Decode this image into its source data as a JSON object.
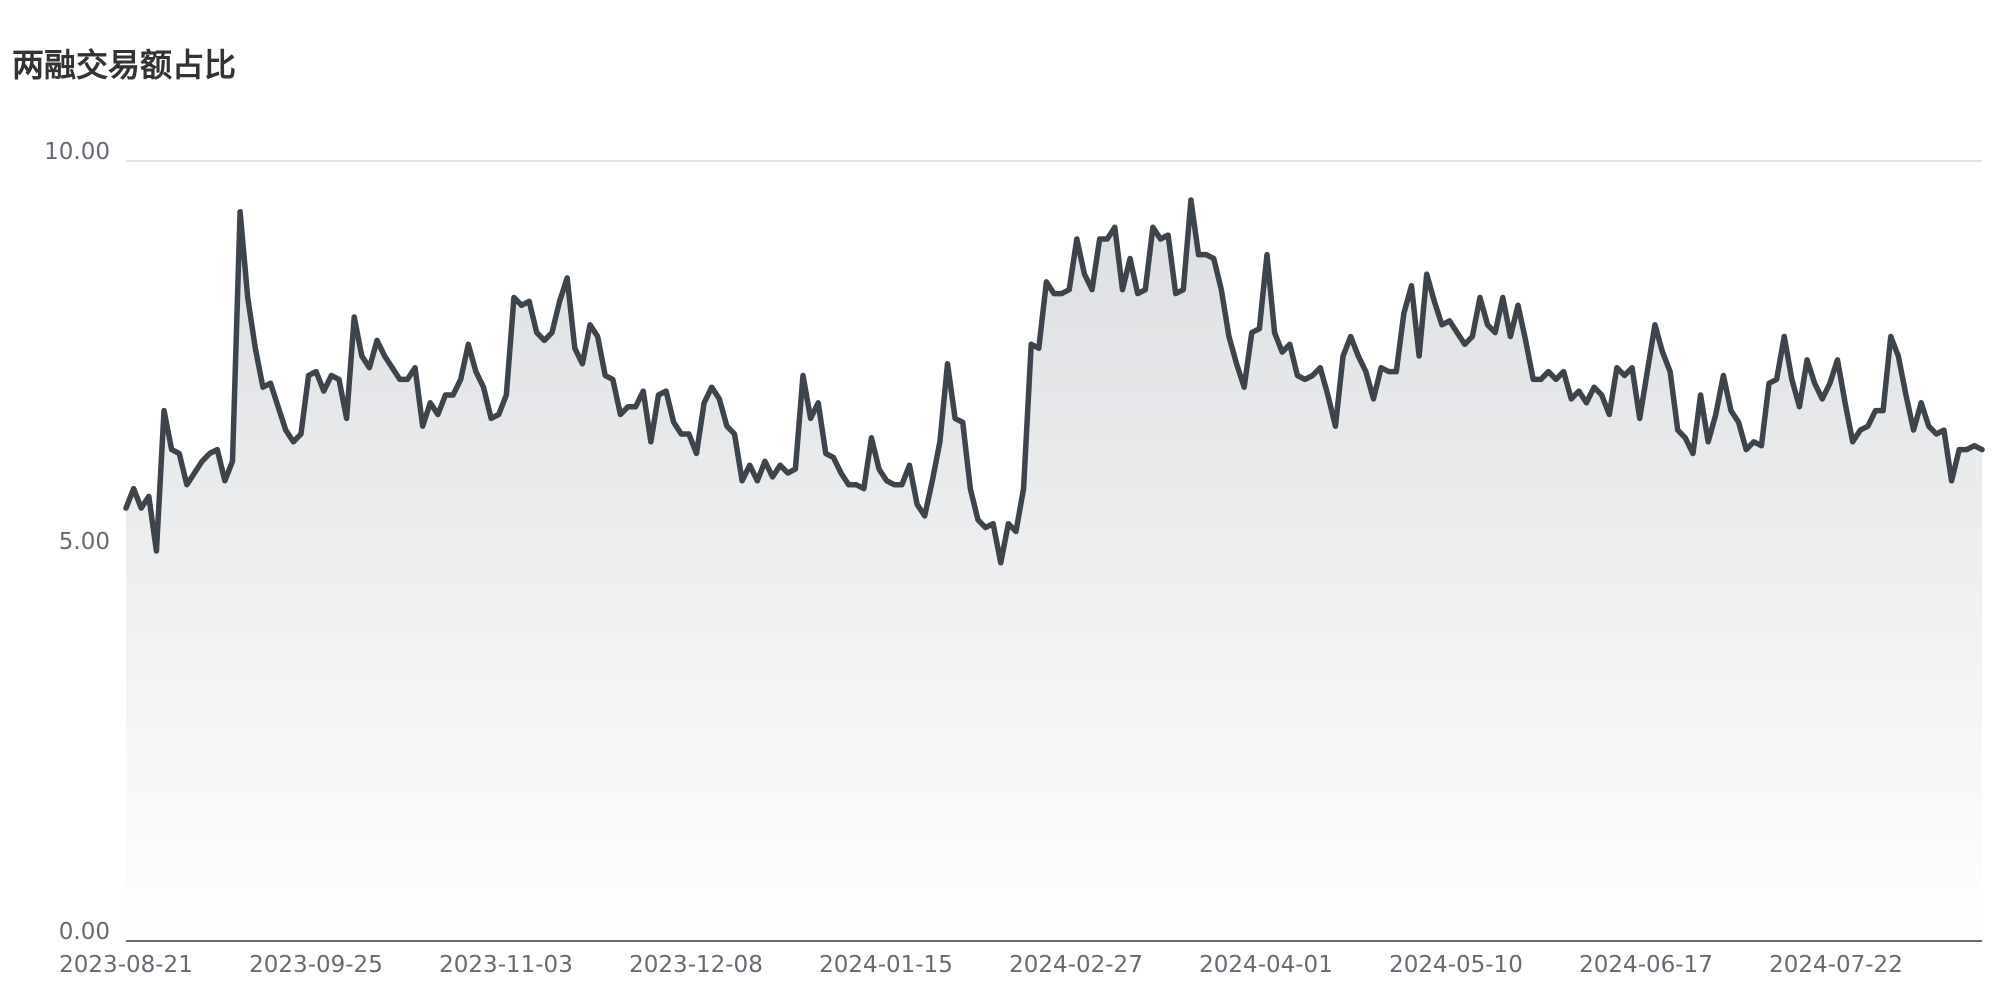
{
  "chart_data": {
    "type": "area",
    "title": "两融交易额占比",
    "ylim": [
      0,
      10
    ],
    "y_ticks": [
      "0.00",
      "5.00",
      "10.00"
    ],
    "x_tick_labels": [
      "2023-08-21",
      "2023-09-25",
      "2023-11-03",
      "2023-12-08",
      "2024-01-15",
      "2024-02-27",
      "2024-04-01",
      "2024-05-10",
      "2024-06-17",
      "2024-07-22"
    ],
    "grid": "horizontal",
    "colors": {
      "line": "#3d444c",
      "area_top": "#dcdee1",
      "area_bottom": "#ffffff",
      "grid": "#d9d9d9",
      "axis": "#666a72"
    },
    "points": [
      [
        0,
        5.55
      ],
      [
        1,
        5.8
      ],
      [
        2,
        5.55
      ],
      [
        3,
        5.7
      ],
      [
        4,
        5.0
      ],
      [
        5,
        6.8
      ],
      [
        6,
        6.3
      ],
      [
        7,
        6.25
      ],
      [
        8,
        5.85
      ],
      [
        9,
        6.0
      ],
      [
        10,
        6.15
      ],
      [
        11,
        6.25
      ],
      [
        12,
        6.3
      ],
      [
        13,
        5.9
      ],
      [
        14,
        6.15
      ],
      [
        15,
        9.35
      ],
      [
        16,
        8.25
      ],
      [
        17,
        7.6
      ],
      [
        18,
        7.1
      ],
      [
        19,
        7.15
      ],
      [
        20,
        6.85
      ],
      [
        21,
        6.55
      ],
      [
        22,
        6.4
      ],
      [
        23,
        6.5
      ],
      [
        24,
        7.25
      ],
      [
        25,
        7.3
      ],
      [
        26,
        7.05
      ],
      [
        27,
        7.25
      ],
      [
        28,
        7.2
      ],
      [
        29,
        6.7
      ],
      [
        30,
        8.0
      ],
      [
        31,
        7.5
      ],
      [
        32,
        7.35
      ],
      [
        33,
        7.7
      ],
      [
        34,
        7.5
      ],
      [
        35,
        7.35
      ],
      [
        36,
        7.2
      ],
      [
        37,
        7.2
      ],
      [
        38,
        7.35
      ],
      [
        39,
        6.6
      ],
      [
        40,
        6.9
      ],
      [
        41,
        6.75
      ],
      [
        42,
        7.0
      ],
      [
        43,
        7.0
      ],
      [
        44,
        7.2
      ],
      [
        45,
        7.65
      ],
      [
        46,
        7.3
      ],
      [
        47,
        7.1
      ],
      [
        48,
        6.7
      ],
      [
        49,
        6.75
      ],
      [
        50,
        7.0
      ],
      [
        51,
        8.25
      ],
      [
        52,
        8.15
      ],
      [
        53,
        8.2
      ],
      [
        54,
        7.8
      ],
      [
        55,
        7.7
      ],
      [
        56,
        7.8
      ],
      [
        57,
        8.2
      ],
      [
        58,
        8.5
      ],
      [
        59,
        7.6
      ],
      [
        60,
        7.4
      ],
      [
        61,
        7.9
      ],
      [
        62,
        7.75
      ],
      [
        63,
        7.25
      ],
      [
        64,
        7.2
      ],
      [
        65,
        6.75
      ],
      [
        66,
        6.85
      ],
      [
        67,
        6.85
      ],
      [
        68,
        7.05
      ],
      [
        69,
        6.4
      ],
      [
        70,
        7.0
      ],
      [
        71,
        7.05
      ],
      [
        72,
        6.65
      ],
      [
        73,
        6.5
      ],
      [
        74,
        6.5
      ],
      [
        75,
        6.25
      ],
      [
        76,
        6.9
      ],
      [
        77,
        7.1
      ],
      [
        78,
        6.95
      ],
      [
        79,
        6.6
      ],
      [
        80,
        6.5
      ],
      [
        81,
        5.9
      ],
      [
        82,
        6.1
      ],
      [
        83,
        5.9
      ],
      [
        84,
        6.15
      ],
      [
        85,
        5.95
      ],
      [
        86,
        6.1
      ],
      [
        87,
        6.0
      ],
      [
        88,
        6.05
      ],
      [
        89,
        7.25
      ],
      [
        90,
        6.7
      ],
      [
        91,
        6.9
      ],
      [
        92,
        6.25
      ],
      [
        93,
        6.2
      ],
      [
        94,
        6.0
      ],
      [
        95,
        5.85
      ],
      [
        96,
        5.85
      ],
      [
        97,
        5.8
      ],
      [
        98,
        6.45
      ],
      [
        99,
        6.05
      ],
      [
        100,
        5.9
      ],
      [
        101,
        5.85
      ],
      [
        102,
        5.85
      ],
      [
        103,
        6.1
      ],
      [
        104,
        5.6
      ],
      [
        105,
        5.45
      ],
      [
        106,
        5.9
      ],
      [
        107,
        6.4
      ],
      [
        108,
        7.4
      ],
      [
        109,
        6.7
      ],
      [
        110,
        6.65
      ],
      [
        111,
        5.8
      ],
      [
        112,
        5.4
      ],
      [
        113,
        5.3
      ],
      [
        114,
        5.35
      ],
      [
        115,
        4.85
      ],
      [
        116,
        5.35
      ],
      [
        117,
        5.25
      ],
      [
        118,
        5.8
      ],
      [
        119,
        7.65
      ],
      [
        120,
        7.6
      ],
      [
        121,
        8.45
      ],
      [
        122,
        8.3
      ],
      [
        123,
        8.3
      ],
      [
        124,
        8.35
      ],
      [
        125,
        9.0
      ],
      [
        126,
        8.55
      ],
      [
        127,
        8.35
      ],
      [
        128,
        9.0
      ],
      [
        129,
        9.0
      ],
      [
        130,
        9.15
      ],
      [
        131,
        8.35
      ],
      [
        132,
        8.75
      ],
      [
        133,
        8.3
      ],
      [
        134,
        8.35
      ],
      [
        135,
        9.15
      ],
      [
        136,
        9.0
      ],
      [
        137,
        9.05
      ],
      [
        138,
        8.3
      ],
      [
        139,
        8.35
      ],
      [
        140,
        9.5
      ],
      [
        141,
        8.8
      ],
      [
        142,
        8.8
      ],
      [
        143,
        8.75
      ],
      [
        144,
        8.35
      ],
      [
        145,
        7.75
      ],
      [
        146,
        7.4
      ],
      [
        147,
        7.1
      ],
      [
        148,
        7.8
      ],
      [
        149,
        7.85
      ],
      [
        150,
        8.8
      ],
      [
        151,
        7.8
      ],
      [
        152,
        7.55
      ],
      [
        153,
        7.65
      ],
      [
        154,
        7.25
      ],
      [
        155,
        7.2
      ],
      [
        156,
        7.25
      ],
      [
        157,
        7.35
      ],
      [
        158,
        7.0
      ],
      [
        159,
        6.6
      ],
      [
        160,
        7.5
      ],
      [
        161,
        7.75
      ],
      [
        162,
        7.5
      ],
      [
        163,
        7.3
      ],
      [
        164,
        6.95
      ],
      [
        165,
        7.35
      ],
      [
        166,
        7.3
      ],
      [
        167,
        7.3
      ],
      [
        168,
        8.05
      ],
      [
        169,
        8.4
      ],
      [
        170,
        7.5
      ],
      [
        171,
        8.55
      ],
      [
        172,
        8.2
      ],
      [
        173,
        7.9
      ],
      [
        174,
        7.95
      ],
      [
        175,
        7.8
      ],
      [
        176,
        7.65
      ],
      [
        177,
        7.75
      ],
      [
        178,
        8.25
      ],
      [
        179,
        7.9
      ],
      [
        180,
        7.8
      ],
      [
        181,
        8.25
      ],
      [
        182,
        7.75
      ],
      [
        183,
        8.15
      ],
      [
        184,
        7.7
      ],
      [
        185,
        7.2
      ],
      [
        186,
        7.2
      ],
      [
        187,
        7.3
      ],
      [
        188,
        7.2
      ],
      [
        189,
        7.3
      ],
      [
        190,
        6.95
      ],
      [
        191,
        7.05
      ],
      [
        192,
        6.9
      ],
      [
        193,
        7.1
      ],
      [
        194,
        7.0
      ],
      [
        195,
        6.75
      ],
      [
        196,
        7.35
      ],
      [
        197,
        7.25
      ],
      [
        198,
        7.35
      ],
      [
        199,
        6.7
      ],
      [
        200,
        7.3
      ],
      [
        201,
        7.9
      ],
      [
        202,
        7.55
      ],
      [
        203,
        7.3
      ],
      [
        204,
        6.55
      ],
      [
        205,
        6.45
      ],
      [
        206,
        6.25
      ],
      [
        207,
        7.0
      ],
      [
        208,
        6.4
      ],
      [
        209,
        6.75
      ],
      [
        210,
        7.25
      ],
      [
        211,
        6.8
      ],
      [
        212,
        6.65
      ],
      [
        213,
        6.3
      ],
      [
        214,
        6.4
      ],
      [
        215,
        6.35
      ],
      [
        216,
        7.15
      ],
      [
        217,
        7.2
      ],
      [
        218,
        7.75
      ],
      [
        219,
        7.2
      ],
      [
        220,
        6.85
      ],
      [
        221,
        7.45
      ],
      [
        222,
        7.15
      ],
      [
        223,
        6.95
      ],
      [
        224,
        7.15
      ],
      [
        225,
        7.45
      ],
      [
        226,
        6.9
      ],
      [
        227,
        6.4
      ],
      [
        228,
        6.55
      ],
      [
        229,
        6.6
      ],
      [
        230,
        6.8
      ],
      [
        231,
        6.8
      ],
      [
        232,
        7.75
      ],
      [
        233,
        7.5
      ],
      [
        234,
        7.0
      ],
      [
        235,
        6.55
      ],
      [
        236,
        6.9
      ],
      [
        237,
        6.6
      ],
      [
        238,
        6.5
      ],
      [
        239,
        6.55
      ],
      [
        240,
        5.9
      ],
      [
        241,
        6.3
      ],
      [
        242,
        6.3
      ],
      [
        243,
        6.35
      ],
      [
        244,
        6.3
      ]
    ]
  }
}
